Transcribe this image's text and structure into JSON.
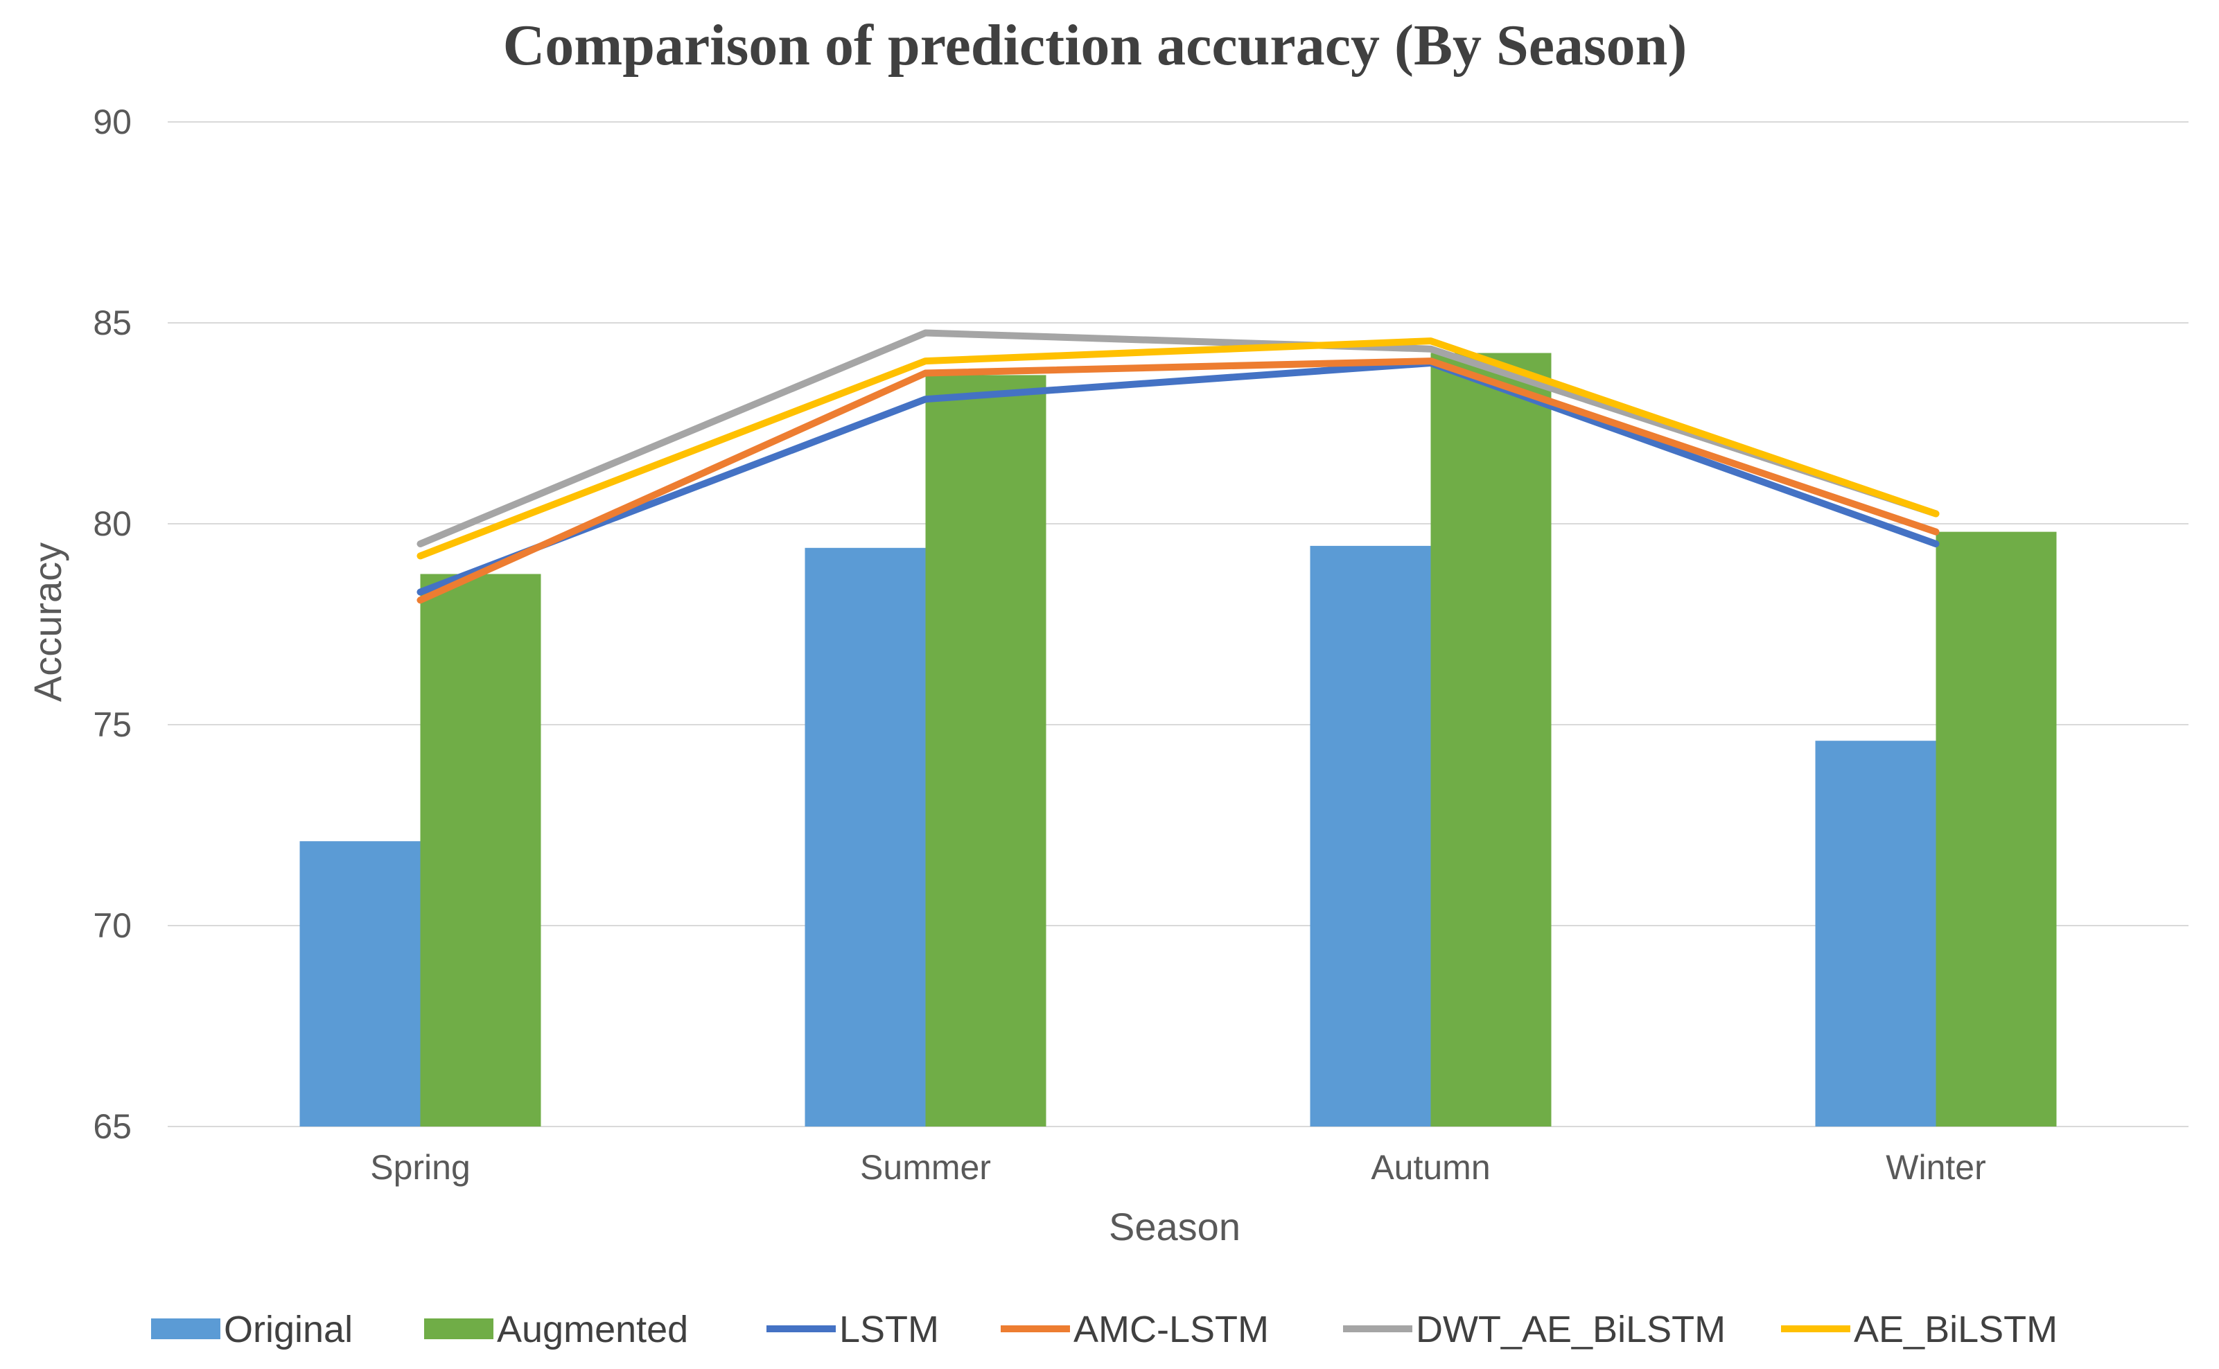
{
  "chart_data": {
    "type": "bar",
    "title": "Comparison of prediction accuracy (By Season)",
    "xlabel": "Season",
    "ylabel": "Accuracy",
    "ylim": [
      65,
      90
    ],
    "yticks": [
      "65",
      "70",
      "75",
      "80",
      "85",
      "90"
    ],
    "grid": true,
    "legend_position": "bottom",
    "categories": [
      "Spring",
      "Summer",
      "Autumn",
      "Winter"
    ],
    "bar_series": [
      {
        "name": "Original",
        "color": "#5B9BD5",
        "values": [
          72.1,
          79.4,
          79.45,
          74.6
        ]
      },
      {
        "name": "Augmented",
        "color": "#70AD47",
        "values": [
          78.75,
          83.7,
          84.25,
          79.8
        ]
      }
    ],
    "line_series": [
      {
        "name": "LSTM",
        "color": "#4472C4",
        "values": [
          78.3,
          83.1,
          84.0,
          79.5
        ]
      },
      {
        "name": "AMC-LSTM",
        "color": "#ED7D31",
        "values": [
          78.1,
          83.75,
          84.05,
          79.8
        ]
      },
      {
        "name": "DWT_AE_BiLSTM",
        "color": "#A5A5A5",
        "values": [
          79.5,
          84.75,
          84.35,
          80.25
        ]
      },
      {
        "name": "AE_BiLSTM",
        "color": "#FFC000",
        "values": [
          79.2,
          84.05,
          84.55,
          80.25
        ]
      }
    ]
  }
}
